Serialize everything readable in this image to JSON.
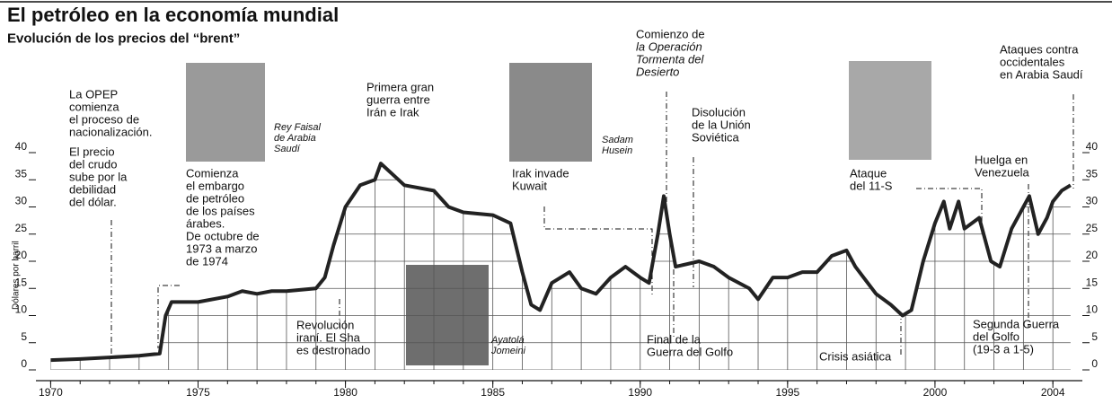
{
  "chart_data": {
    "type": "line",
    "title": "El petróleo en la economía mundial",
    "subtitle": "Evolución de los precios del “brent”",
    "y_label": "Dólares por barril",
    "x": [
      1970,
      1971,
      1972,
      1973,
      1973.7,
      1973.9,
      1974.1,
      1975,
      1976,
      1976.5,
      1977,
      1977.5,
      1978,
      1979,
      1979.3,
      1979.6,
      1980,
      1980.5,
      1981,
      1981.2,
      1981.6,
      1982,
      1983,
      1983.5,
      1984,
      1985,
      1985.6,
      1986,
      1986.3,
      1986.6,
      1987,
      1987.6,
      1988,
      1988.5,
      1989,
      1989.5,
      1990,
      1990.3,
      1990.6,
      1990.8,
      1991,
      1991.2,
      1992,
      1992.5,
      1993,
      1993.7,
      1994,
      1994.5,
      1995,
      1995.5,
      1996,
      1996.5,
      1997,
      1997.3,
      1998,
      1998.5,
      1998.9,
      1999.2,
      1999.6,
      2000,
      2000.3,
      2000.5,
      2000.8,
      2001,
      2001.5,
      2001.9,
      2002.2,
      2002.6,
      2003,
      2003.2,
      2003.5,
      2003.8,
      2004,
      2004.3,
      2004.6
    ],
    "series": [
      {
        "name": "Brent",
        "color": "#222222",
        "values": [
          1.8,
          2.0,
          2.3,
          2.6,
          3,
          10,
          12.5,
          12.5,
          13.5,
          14.5,
          14,
          14.5,
          14.5,
          15,
          17,
          23,
          30,
          34,
          35,
          38,
          36,
          34,
          33,
          30,
          29,
          28.5,
          27,
          18,
          12,
          11,
          16,
          18,
          15,
          14,
          17,
          19,
          17,
          16,
          25,
          32,
          25,
          19,
          20,
          19,
          17,
          15,
          13,
          17,
          17,
          18,
          18,
          21,
          22,
          19,
          14,
          12,
          10,
          11,
          20,
          27,
          31,
          26,
          31,
          26,
          28,
          20,
          19,
          26,
          30,
          32,
          25,
          28,
          31,
          33,
          34
        ]
      }
    ],
    "xlim": [
      1969.5,
      2005
    ],
    "xticks": [
      1970,
      1975,
      1980,
      1985,
      1990,
      1995,
      2000,
      2004
    ],
    "xminor": [
      1970,
      1971,
      1972,
      1973,
      1974,
      1975,
      1976,
      1977,
      1978,
      1979,
      1980,
      1981,
      1982,
      1983,
      1984,
      1985,
      1986,
      1987,
      1988,
      1989,
      1990,
      1991,
      1992,
      1993,
      1994,
      1995,
      1996,
      1997,
      1998,
      1999,
      2000,
      2001,
      2002,
      2003,
      2004
    ],
    "ylim": [
      0,
      40
    ],
    "yticks": [
      0,
      5,
      10,
      15,
      20,
      25,
      30,
      35,
      40
    ],
    "grid": true,
    "annotations": [
      {
        "lines": [
          "La OPEP",
          "comienza",
          "el proceso de",
          "nacionalización."
        ]
      },
      {
        "lines": [
          "El precio",
          "del crudo",
          "sube por la",
          "debilidad",
          "del dólar."
        ]
      },
      {
        "lines": [
          "Comienza",
          "el embargo",
          "de petróleo",
          "de los países",
          "árabes.",
          "De octubre de",
          "1973 a marzo",
          "de 1974"
        ]
      },
      {
        "lines": [
          "Primera gran",
          "guerra entre",
          "Irán e Irak"
        ]
      },
      {
        "lines": [
          "Revolución",
          "iraní. El Sha",
          "es destronado"
        ]
      },
      {
        "lines": [
          "Irak invade",
          "Kuwait"
        ]
      },
      {
        "lines": [
          "Comienzo de",
          "la Operación",
          "Tormenta del",
          "Desierto"
        ]
      },
      {
        "lines": [
          "Disolución",
          "de la Unión",
          "Soviética"
        ]
      },
      {
        "lines": [
          "Final de la",
          "Guerra del Golfo"
        ]
      },
      {
        "lines": [
          "Crisis asiática"
        ]
      },
      {
        "lines": [
          "Ataque",
          "del 11-S"
        ]
      },
      {
        "lines": [
          "Ataques contra",
          "occidentales",
          "en Arabia Saudí"
        ]
      },
      {
        "lines": [
          "Huelga en",
          "Venezuela"
        ]
      },
      {
        "lines": [
          "Segunda Guerra",
          "del Golfo",
          "(19-3 a 1-5)"
        ]
      }
    ],
    "photo_captions": [
      {
        "lines": [
          "Rey Faisal",
          "de Arabia",
          "Saudí"
        ]
      },
      {
        "lines": [
          "Sadam",
          "Husein"
        ]
      },
      {
        "lines": [
          "Ayatolá",
          "Jomeini"
        ]
      }
    ]
  }
}
